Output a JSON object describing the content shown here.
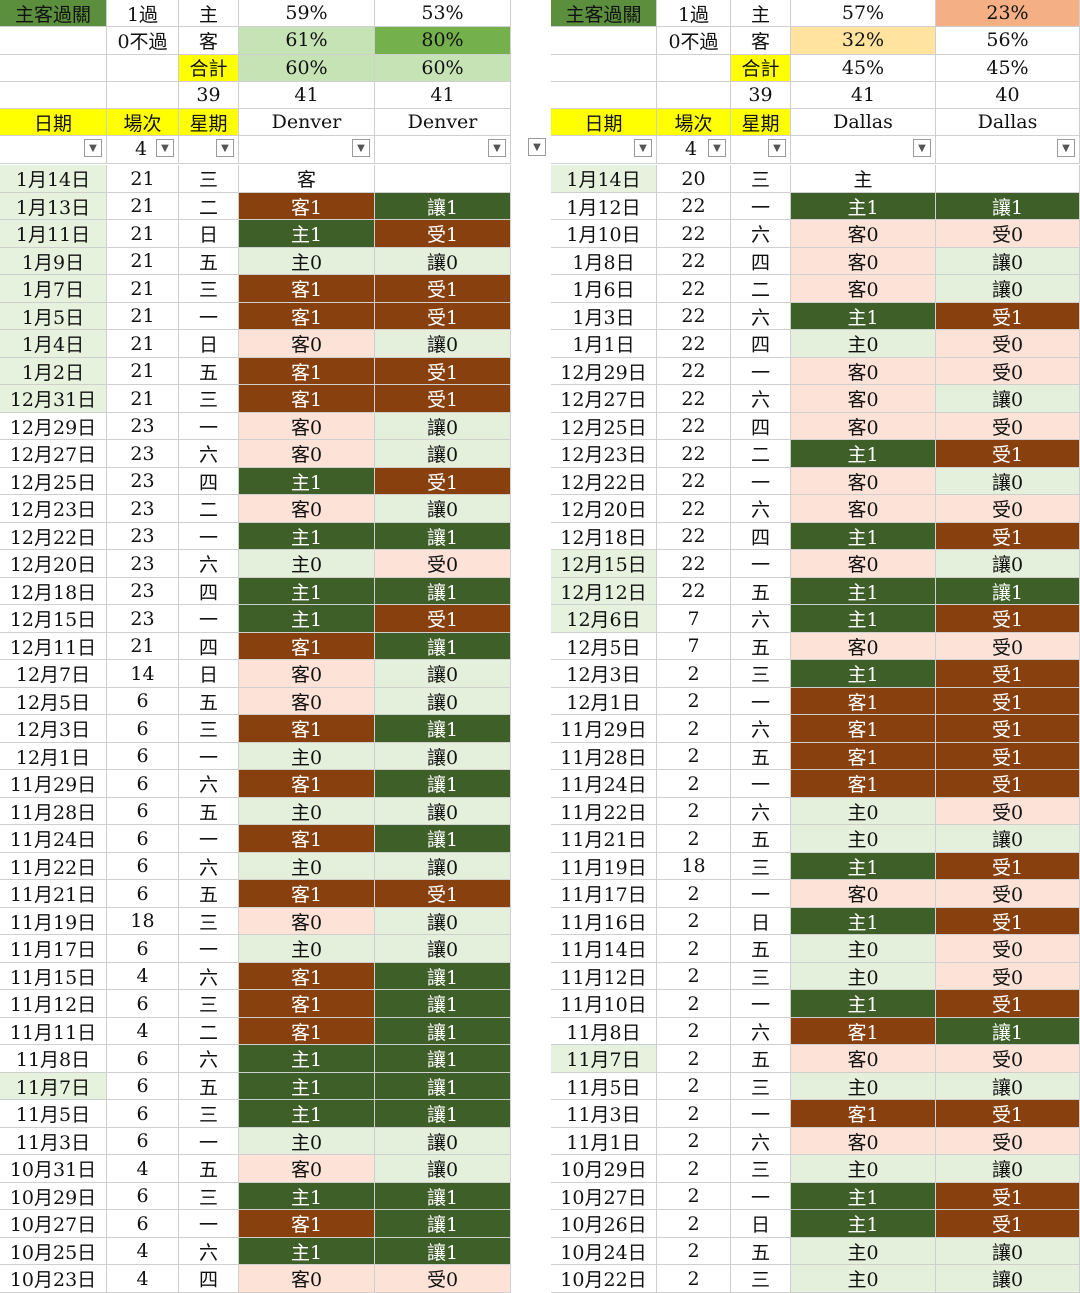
{
  "panels": [
    {
      "id": "left",
      "team": "Denver",
      "summary": [
        {
          "label": "主客過關",
          "label_color": "#5b8f3e",
          "pass1": "1過",
          "side": "主",
          "p1": "59%",
          "p2": "53%",
          "p1_color": "",
          "p2_color": ""
        },
        {
          "label": "",
          "pass1": "0不過",
          "side": "客",
          "p1": "61%",
          "p2": "80%",
          "p1_color": "#c6e3b6",
          "p2_color": "#74b04c"
        },
        {
          "label": "",
          "pass1": "",
          "side": "合計",
          "side_color": "#ffff00",
          "p1": "60%",
          "p2": "60%",
          "p1_color": "#c6e3b6",
          "p2_color": "#c6e3b6"
        },
        {
          "label": "",
          "pass1": "",
          "side": "39",
          "p1": "41",
          "p2": "41",
          "p1_color": "",
          "p2_color": ""
        }
      ],
      "headers": [
        "日期",
        "場次",
        "星期",
        "Denver",
        "Denver"
      ],
      "filter_value": "4",
      "rows": [
        [
          "1月14日",
          "21",
          "三",
          "客",
          ""
        ],
        [
          "1月13日",
          "21",
          "二",
          "客1",
          "讓1"
        ],
        [
          "1月11日",
          "21",
          "日",
          "主1",
          "受1"
        ],
        [
          "1月9日",
          "21",
          "五",
          "主0",
          "讓0"
        ],
        [
          "1月7日",
          "21",
          "三",
          "客1",
          "受1"
        ],
        [
          "1月5日",
          "21",
          "一",
          "客1",
          "受1"
        ],
        [
          "1月4日",
          "21",
          "日",
          "客0",
          "讓0"
        ],
        [
          "1月2日",
          "21",
          "五",
          "客1",
          "受1"
        ],
        [
          "12月31日",
          "21",
          "三",
          "客1",
          "受1"
        ],
        [
          "12月29日",
          "23",
          "一",
          "客0",
          "讓0"
        ],
        [
          "12月27日",
          "23",
          "六",
          "客0",
          "讓0"
        ],
        [
          "12月25日",
          "23",
          "四",
          "主1",
          "受1"
        ],
        [
          "12月23日",
          "23",
          "二",
          "客0",
          "讓0"
        ],
        [
          "12月22日",
          "23",
          "一",
          "主1",
          "讓1"
        ],
        [
          "12月20日",
          "23",
          "六",
          "主0",
          "受0"
        ],
        [
          "12月18日",
          "23",
          "四",
          "主1",
          "讓1"
        ],
        [
          "12月15日",
          "23",
          "一",
          "主1",
          "受1"
        ],
        [
          "12月11日",
          "21",
          "四",
          "客1",
          "讓1"
        ],
        [
          "12月7日",
          "14",
          "日",
          "客0",
          "讓0"
        ],
        [
          "12月5日",
          "6",
          "五",
          "客0",
          "讓0"
        ],
        [
          "12月3日",
          "6",
          "三",
          "客1",
          "讓1"
        ],
        [
          "12月1日",
          "6",
          "一",
          "主0",
          "讓0"
        ],
        [
          "11月29日",
          "6",
          "六",
          "客1",
          "讓1"
        ],
        [
          "11月28日",
          "6",
          "五",
          "主0",
          "讓0"
        ],
        [
          "11月24日",
          "6",
          "一",
          "客1",
          "讓1"
        ],
        [
          "11月22日",
          "6",
          "六",
          "主0",
          "讓0"
        ],
        [
          "11月21日",
          "6",
          "五",
          "客1",
          "受1"
        ],
        [
          "11月19日",
          "18",
          "三",
          "客0",
          "讓0"
        ],
        [
          "11月17日",
          "6",
          "一",
          "主0",
          "讓0"
        ],
        [
          "11月15日",
          "4",
          "六",
          "客1",
          "讓1"
        ],
        [
          "11月12日",
          "6",
          "三",
          "客1",
          "讓1"
        ],
        [
          "11月11日",
          "4",
          "二",
          "客1",
          "讓1"
        ],
        [
          "11月8日",
          "6",
          "六",
          "主1",
          "讓1"
        ],
        [
          "11月7日",
          "6",
          "五",
          "主1",
          "讓1"
        ],
        [
          "11月5日",
          "6",
          "三",
          "主1",
          "讓1"
        ],
        [
          "11月3日",
          "6",
          "一",
          "主0",
          "讓0"
        ],
        [
          "10月31日",
          "4",
          "五",
          "客0",
          "讓0"
        ],
        [
          "10月29日",
          "6",
          "三",
          "主1",
          "讓1"
        ],
        [
          "10月27日",
          "6",
          "一",
          "客1",
          "讓1"
        ],
        [
          "10月25日",
          "4",
          "六",
          "主1",
          "讓1"
        ],
        [
          "10月23日",
          "4",
          "四",
          "客0",
          "受0"
        ]
      ]
    },
    {
      "id": "right",
      "team": "Dallas",
      "summary": [
        {
          "label": "主客過關",
          "label_color": "#5b8f3e",
          "pass1": "1過",
          "side": "主",
          "p1": "57%",
          "p2": "23%",
          "p1_color": "",
          "p2_color": "#f4b084"
        },
        {
          "label": "",
          "pass1": "0不過",
          "side": "客",
          "p1": "32%",
          "p2": "56%",
          "p1_color": "#ffe39e",
          "p2_color": ""
        },
        {
          "label": "",
          "pass1": "",
          "side": "合計",
          "side_color": "#ffff00",
          "p1": "45%",
          "p2": "45%",
          "p1_color": "",
          "p2_color": ""
        },
        {
          "label": "",
          "pass1": "",
          "side": "39",
          "p1": "41",
          "p2": "40",
          "p1_color": "",
          "p2_color": ""
        }
      ],
      "headers": [
        "日期",
        "場次",
        "星期",
        "Dallas",
        "Dallas"
      ],
      "filter_value": "4",
      "rows": [
        [
          "1月14日",
          "20",
          "三",
          "主",
          ""
        ],
        [
          "1月12日",
          "22",
          "一",
          "主1",
          "讓1"
        ],
        [
          "1月10日",
          "22",
          "六",
          "客0",
          "受0"
        ],
        [
          "1月8日",
          "22",
          "四",
          "客0",
          "讓0"
        ],
        [
          "1月6日",
          "22",
          "二",
          "客0",
          "讓0"
        ],
        [
          "1月3日",
          "22",
          "六",
          "主1",
          "受1"
        ],
        [
          "1月1日",
          "22",
          "四",
          "主0",
          "受0"
        ],
        [
          "12月29日",
          "22",
          "一",
          "客0",
          "受0"
        ],
        [
          "12月27日",
          "22",
          "六",
          "客0",
          "讓0"
        ],
        [
          "12月25日",
          "22",
          "四",
          "客0",
          "受0"
        ],
        [
          "12月23日",
          "22",
          "二",
          "主1",
          "受1"
        ],
        [
          "12月22日",
          "22",
          "一",
          "客0",
          "讓0"
        ],
        [
          "12月20日",
          "22",
          "六",
          "客0",
          "受0"
        ],
        [
          "12月18日",
          "22",
          "四",
          "主1",
          "受1"
        ],
        [
          "12月15日",
          "22",
          "一",
          "客0",
          "讓0"
        ],
        [
          "12月12日",
          "22",
          "五",
          "主1",
          "讓1"
        ],
        [
          "12月6日",
          "7",
          "六",
          "主1",
          "受1"
        ],
        [
          "12月5日",
          "7",
          "五",
          "客0",
          "受0"
        ],
        [
          "12月3日",
          "2",
          "三",
          "主1",
          "受1"
        ],
        [
          "12月1日",
          "2",
          "一",
          "客1",
          "受1"
        ],
        [
          "11月29日",
          "2",
          "六",
          "客1",
          "受1"
        ],
        [
          "11月28日",
          "2",
          "五",
          "客1",
          "受1"
        ],
        [
          "11月24日",
          "2",
          "一",
          "客1",
          "受1"
        ],
        [
          "11月22日",
          "2",
          "六",
          "主0",
          "受0"
        ],
        [
          "11月21日",
          "2",
          "五",
          "主0",
          "讓0"
        ],
        [
          "11月19日",
          "18",
          "三",
          "主1",
          "受1"
        ],
        [
          "11月17日",
          "2",
          "一",
          "客0",
          "受0"
        ],
        [
          "11月16日",
          "2",
          "日",
          "主1",
          "受1"
        ],
        [
          "11月14日",
          "2",
          "五",
          "主0",
          "受0"
        ],
        [
          "11月12日",
          "2",
          "三",
          "主0",
          "受0"
        ],
        [
          "11月10日",
          "2",
          "一",
          "主1",
          "受1"
        ],
        [
          "11月8日",
          "2",
          "六",
          "客1",
          "讓1"
        ],
        [
          "11月7日",
          "2",
          "五",
          "客0",
          "受0"
        ],
        [
          "11月5日",
          "2",
          "三",
          "主0",
          "讓0"
        ],
        [
          "11月3日",
          "2",
          "一",
          "客1",
          "受1"
        ],
        [
          "11月1日",
          "2",
          "六",
          "客0",
          "受0"
        ],
        [
          "10月29日",
          "2",
          "三",
          "主0",
          "讓0"
        ],
        [
          "10月27日",
          "2",
          "一",
          "主1",
          "受1"
        ],
        [
          "10月26日",
          "2",
          "日",
          "主1",
          "受1"
        ],
        [
          "10月24日",
          "2",
          "五",
          "主0",
          "讓0"
        ],
        [
          "10月22日",
          "2",
          "三",
          "主0",
          "讓0"
        ]
      ]
    }
  ],
  "colors": {
    "header_yellow": "#ffff00",
    "label_green": "#5b8f3e",
    "win_green": "#3f5f29",
    "loss_brown": "#88400f",
    "pale_pink": "#fde3d7",
    "pale_green": "#e4f0dc",
    "date_tint": "#e6f1de"
  },
  "icons": {
    "filter": "dropdown-filter-icon"
  }
}
